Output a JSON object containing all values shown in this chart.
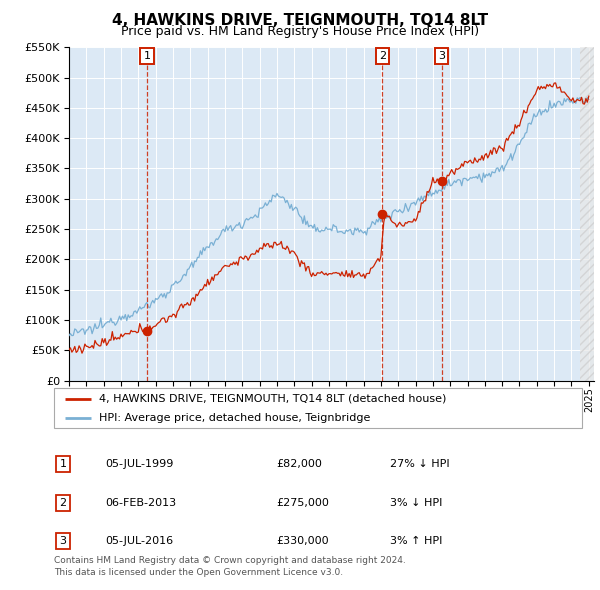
{
  "title": "4, HAWKINS DRIVE, TEIGNMOUTH, TQ14 8LT",
  "subtitle": "Price paid vs. HM Land Registry's House Price Index (HPI)",
  "legend_red": "4, HAWKINS DRIVE, TEIGNMOUTH, TQ14 8LT (detached house)",
  "legend_blue": "HPI: Average price, detached house, Teignbridge",
  "footer": "Contains HM Land Registry data © Crown copyright and database right 2024.\nThis data is licensed under the Open Government Licence v3.0.",
  "sales": [
    {
      "label": "1",
      "date": "05-JUL-1999",
      "price": "£82,000",
      "hpi_rel": "27% ↓ HPI",
      "x_year": 1999.5,
      "y_val": 82000
    },
    {
      "label": "2",
      "date": "06-FEB-2013",
      "price": "£275,000",
      "hpi_rel": "3% ↓ HPI",
      "x_year": 2013.09,
      "y_val": 275000
    },
    {
      "label": "3",
      "date": "05-JUL-2016",
      "price": "£330,000",
      "hpi_rel": "3% ↑ HPI",
      "x_year": 2016.5,
      "y_val": 330000
    }
  ],
  "ylim": [
    0,
    550000
  ],
  "xlim_start": 1995.0,
  "xlim_end": 2025.3,
  "bg_color": "#dce9f5",
  "red_color": "#cc2200",
  "blue_color": "#7ab0d4",
  "grid_color": "#ffffff",
  "hpi_base_years": [
    1995,
    1996,
    1997,
    1998,
    1999,
    2000,
    2001,
    2002,
    2003,
    2004,
    2005,
    2006,
    2007,
    2008,
    2009,
    2010,
    2011,
    2012,
    2013,
    2014,
    2015,
    2016,
    2017,
    2018,
    2019,
    2020,
    2021,
    2022,
    2023,
    2024
  ],
  "hpi_base_vals": [
    75000,
    82000,
    92000,
    105000,
    115000,
    132000,
    155000,
    185000,
    220000,
    248000,
    260000,
    278000,
    308000,
    285000,
    248000,
    252000,
    245000,
    248000,
    265000,
    280000,
    295000,
    310000,
    325000,
    335000,
    338000,
    348000,
    390000,
    440000,
    455000,
    462000
  ],
  "red_base_years": [
    1995,
    1996,
    1997,
    1998,
    1999,
    2000,
    2001,
    2002,
    2003,
    2004,
    2005,
    2006,
    2007,
    2008,
    2009,
    2010,
    2011,
    2012,
    2013,
    2013.2,
    2014,
    2015,
    2016,
    2016.6,
    2017,
    2018,
    2019,
    2020,
    2021,
    2022,
    2023,
    2024
  ],
  "red_base_vals": [
    50000,
    55000,
    62000,
    72000,
    82000,
    92000,
    108000,
    130000,
    162000,
    188000,
    200000,
    215000,
    228000,
    210000,
    175000,
    178000,
    175000,
    170000,
    205000,
    275000,
    255000,
    265000,
    330000,
    330000,
    340000,
    360000,
    370000,
    385000,
    425000,
    480000,
    490000,
    462000
  ]
}
